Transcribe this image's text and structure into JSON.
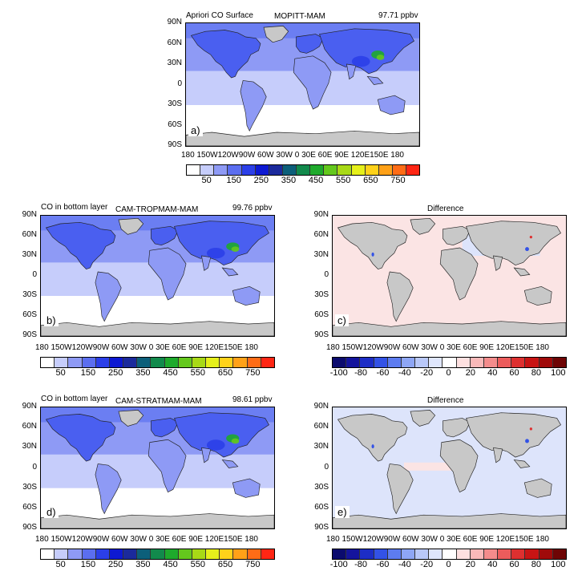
{
  "colors": {
    "co_scale": [
      "#ffffff",
      "#c6cdfb",
      "#8e9af5",
      "#5b6ef0",
      "#2b3fe8",
      "#0d19d2",
      "#1b2a9c",
      "#0c5f7a",
      "#128a4c",
      "#1eaa2c",
      "#64c81d",
      "#a8d916",
      "#e6f01b",
      "#ffd21a",
      "#ffa118",
      "#ff6c16",
      "#ff2614"
    ],
    "diff_scale": [
      "#0b0b6e",
      "#14149c",
      "#1d2dc6",
      "#3352e6",
      "#5d7cf0",
      "#8ea6f5",
      "#b9c8f9",
      "#dfe6fc",
      "#ffffff",
      "#fde0e0",
      "#f9b9b9",
      "#f48c8c",
      "#ec5c5c",
      "#de3030",
      "#c81414",
      "#a00a0a",
      "#6e0505"
    ],
    "land": "#c8c8c8",
    "ocean_low": "#c6cdfb",
    "ocean_mid": "#8e9af5",
    "ocean_diff_pos": "#fbe4e4",
    "ocean_diff_neg": "#dde4fb"
  },
  "xaxis_ticks": "180 150W120W90W 60W 30W   0   30E 60E 90E 120E150E 180",
  "yaxis_ticks": [
    "90N",
    "60N",
    "30N",
    "0",
    "30S",
    "60S",
    "90S"
  ],
  "co_colorbar_labels": [
    "50",
    "150",
    "250",
    "350",
    "450",
    "550",
    "650",
    "750"
  ],
  "diff_colorbar_labels": [
    "-100",
    "-80",
    "-60",
    "-40",
    "-20",
    "0",
    "20",
    "40",
    "60",
    "80",
    "100"
  ],
  "panels": {
    "a": {
      "left_title": "Apriori CO Surface",
      "center_title": "MOPITT-MAM",
      "right_title": "97.71 ppbv",
      "letter": "a)"
    },
    "b": {
      "left_title": "CO in bottom layer",
      "center_title": "CAM-TROPMAM-MAM",
      "right_title": "99.76 ppbv",
      "letter": "b)"
    },
    "c": {
      "center_title": "Difference",
      "letter": "c)"
    },
    "d": {
      "left_title": "CO in bottom layer",
      "center_title": "CAM-STRATMAM-MAM",
      "right_title": "98.61 ppbv",
      "letter": "d)"
    },
    "e": {
      "center_title": "Difference",
      "letter": "e)"
    }
  }
}
